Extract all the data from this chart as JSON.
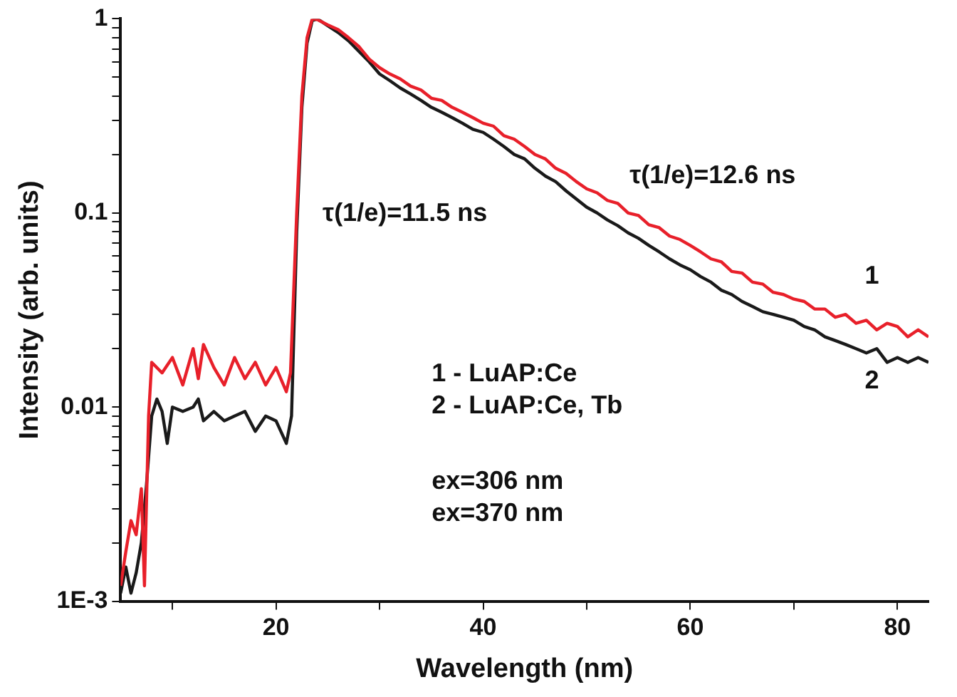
{
  "chart_data": {
    "type": "line",
    "xlabel": "Wavelength (nm)",
    "ylabel": "Intensity (arb. units)",
    "log": "y",
    "marker": "none",
    "line_style": "solid",
    "xlim": [
      5,
      83
    ],
    "xticks": [
      {
        "value": 10,
        "label": null
      },
      20,
      {
        "value": 30,
        "label": null
      },
      40,
      {
        "value": 50,
        "label": null
      },
      60,
      {
        "value": 70,
        "label": null
      },
      80
    ],
    "ylim": [
      0.001,
      1
    ],
    "yticks": [
      {
        "value": 0.001,
        "label": "1E-3"
      },
      {
        "value": 0.002,
        "label": null
      },
      {
        "value": 0.003,
        "label": null
      },
      {
        "value": 0.004,
        "label": null
      },
      {
        "value": 0.005,
        "label": null
      },
      {
        "value": 0.006,
        "label": null
      },
      {
        "value": 0.007,
        "label": null
      },
      {
        "value": 0.008,
        "label": null
      },
      {
        "value": 0.009,
        "label": null
      },
      0.01,
      {
        "value": 0.02,
        "label": null
      },
      {
        "value": 0.03,
        "label": null
      },
      {
        "value": 0.04,
        "label": null
      },
      {
        "value": 0.05,
        "label": null
      },
      {
        "value": 0.06,
        "label": null
      },
      {
        "value": 0.07,
        "label": null
      },
      {
        "value": 0.08,
        "label": null
      },
      {
        "value": 0.09,
        "label": null
      },
      0.1,
      {
        "value": 0.2,
        "label": null
      },
      {
        "value": 0.3,
        "label": null
      },
      {
        "value": 0.4,
        "label": null
      },
      {
        "value": 0.5,
        "label": null
      },
      {
        "value": 0.6,
        "label": null
      },
      {
        "value": 0.7,
        "label": null
      },
      {
        "value": 0.8,
        "label": null
      },
      {
        "value": 0.9,
        "label": null
      },
      1
    ],
    "series": [
      {
        "color": "#e8202a",
        "x": [
          5,
          5.5,
          6,
          6.5,
          7,
          7.3,
          7.7,
          8,
          9,
          10,
          11,
          12,
          12.5,
          13,
          14,
          15,
          16,
          17,
          18,
          19,
          20,
          21,
          21.4,
          22,
          22.5,
          23,
          23.5,
          24,
          25,
          26,
          27,
          28,
          29,
          30,
          31,
          32,
          33,
          34,
          35,
          36,
          37,
          38,
          39,
          40,
          41,
          42,
          43,
          44,
          45,
          46,
          47,
          48,
          49,
          50,
          51,
          52,
          53,
          54,
          55,
          56,
          57,
          58,
          59,
          60,
          61,
          62,
          63,
          64,
          65,
          66,
          67,
          68,
          69,
          70,
          71,
          72,
          73,
          74,
          75,
          76,
          77,
          78,
          79,
          80,
          81,
          82,
          83
        ],
        "values": [
          0.0012,
          0.0018,
          0.0026,
          0.0022,
          0.0038,
          0.0012,
          0.009,
          0.017,
          0.015,
          0.018,
          0.013,
          0.02,
          0.014,
          0.021,
          0.016,
          0.013,
          0.018,
          0.014,
          0.017,
          0.013,
          0.016,
          0.012,
          0.015,
          0.1,
          0.4,
          0.8,
          1.0,
          0.99,
          0.93,
          0.88,
          0.8,
          0.72,
          0.62,
          0.56,
          0.52,
          0.49,
          0.45,
          0.43,
          0.39,
          0.38,
          0.35,
          0.33,
          0.31,
          0.29,
          0.28,
          0.25,
          0.24,
          0.22,
          0.2,
          0.19,
          0.17,
          0.16,
          0.145,
          0.133,
          0.127,
          0.116,
          0.112,
          0.1,
          0.097,
          0.087,
          0.084,
          0.076,
          0.073,
          0.068,
          0.063,
          0.058,
          0.056,
          0.05,
          0.049,
          0.044,
          0.043,
          0.039,
          0.038,
          0.036,
          0.035,
          0.032,
          0.032,
          0.029,
          0.03,
          0.027,
          0.028,
          0.025,
          0.027,
          0.026,
          0.023,
          0.025,
          0.023
        ]
      },
      {
        "color": "#1a1a1a",
        "x": [
          5,
          5.5,
          6,
          6.5,
          7,
          7.5,
          8,
          8.5,
          9,
          9.5,
          10,
          11,
          12,
          12.5,
          13,
          14,
          15,
          16,
          17,
          18,
          19,
          20,
          21,
          21.5,
          22,
          22.5,
          23,
          23.5,
          24,
          25,
          26,
          27,
          28,
          29,
          30,
          31,
          32,
          33,
          34,
          35,
          36,
          37,
          38,
          39,
          40,
          41,
          42,
          43,
          44,
          45,
          46,
          47,
          48,
          49,
          50,
          51,
          52,
          53,
          54,
          55,
          56,
          57,
          58,
          59,
          60,
          61,
          62,
          63,
          64,
          65,
          66,
          67,
          68,
          69,
          70,
          71,
          72,
          73,
          74,
          75,
          76,
          77,
          78,
          79,
          80,
          81,
          82,
          83
        ],
        "values": [
          0.0011,
          0.0015,
          0.0011,
          0.0014,
          0.002,
          0.004,
          0.009,
          0.011,
          0.0095,
          0.0065,
          0.01,
          0.0095,
          0.01,
          0.011,
          0.0085,
          0.0095,
          0.0085,
          0.009,
          0.0095,
          0.0075,
          0.009,
          0.0085,
          0.0065,
          0.009,
          0.08,
          0.35,
          0.75,
          0.98,
          1.0,
          0.92,
          0.85,
          0.77,
          0.68,
          0.6,
          0.52,
          0.48,
          0.44,
          0.41,
          0.38,
          0.35,
          0.33,
          0.31,
          0.29,
          0.27,
          0.26,
          0.24,
          0.22,
          0.2,
          0.19,
          0.17,
          0.155,
          0.145,
          0.13,
          0.118,
          0.107,
          0.1,
          0.092,
          0.086,
          0.079,
          0.074,
          0.068,
          0.063,
          0.058,
          0.054,
          0.051,
          0.047,
          0.044,
          0.04,
          0.038,
          0.035,
          0.033,
          0.031,
          0.03,
          0.029,
          0.028,
          0.026,
          0.025,
          0.023,
          0.022,
          0.021,
          0.02,
          0.019,
          0.02,
          0.017,
          0.018,
          0.017,
          0.018,
          0.017
        ]
      }
    ],
    "annotations": [
      "τ(1/e)=11.5 ns",
      "τ(1/e)=12.6 ns",
      "1 - LuAP:Ce",
      "2 - LuAP:Ce, Tb",
      "ex=306 nm",
      "ex=370 nm",
      "1",
      "2"
    ]
  }
}
